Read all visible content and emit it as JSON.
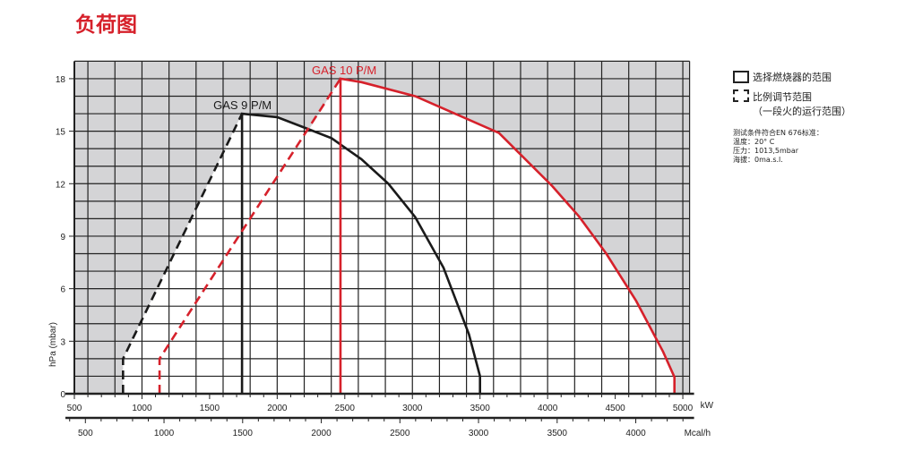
{
  "title": "负荷图",
  "legend": {
    "solid": "选择燃烧器的范围",
    "dashed_1": "比例调节范围",
    "dashed_2": "（一段火的运行范围）",
    "notes": [
      "测试条件符合EN 676标准：",
      "温度：20° C",
      "压力：1013,5mbar",
      "海拔：0ma.s.l."
    ]
  },
  "colors": {
    "red": "#d6212b",
    "black": "#1a1a1a",
    "gray": "#d4d4d6"
  },
  "chart_data": {
    "type": "line",
    "title": "负荷图",
    "xlabel": "kW",
    "x2label": "Mcal/h",
    "ylabel": "hPa (mbar)",
    "xlim": [
      500,
      5050
    ],
    "ylim": [
      0,
      19
    ],
    "xticks": [
      500,
      1000,
      1500,
      2000,
      2500,
      3000,
      3500,
      4000,
      4500,
      5000
    ],
    "x2ticks": [
      500,
      1000,
      1500,
      2000,
      2500,
      3000,
      3500,
      4000
    ],
    "yticks": [
      0,
      3,
      6,
      9,
      12,
      15,
      18
    ],
    "grid": true,
    "series": [
      {
        "name": "GAS 9 P/M",
        "color": "#1a1a1a",
        "dashed": [
          [
            860,
            0
          ],
          [
            860,
            2
          ],
          [
            1740,
            16
          ]
        ],
        "solid": [
          [
            1740,
            0
          ],
          [
            1740,
            16
          ],
          [
            2000,
            15.8
          ],
          [
            2236,
            15.1
          ],
          [
            2402,
            14.6
          ],
          [
            2623,
            13.4
          ],
          [
            2822,
            12.0
          ],
          [
            3020,
            10.1
          ],
          [
            3230,
            7.2
          ],
          [
            3418,
            3.4
          ],
          [
            3500,
            1.0
          ],
          [
            3500,
            0
          ]
        ]
      },
      {
        "name": "GAS 10 P/M",
        "color": "#d6212b",
        "dashed": [
          [
            1130,
            0
          ],
          [
            1130,
            2
          ],
          [
            2468,
            18
          ]
        ],
        "solid": [
          [
            2468,
            0
          ],
          [
            2468,
            18
          ],
          [
            2623,
            17.8
          ],
          [
            3020,
            17.0
          ],
          [
            3640,
            14.9
          ],
          [
            4036,
            11.85
          ],
          [
            4235,
            10.1
          ],
          [
            4434,
            8.0
          ],
          [
            4655,
            5.3
          ],
          [
            4854,
            2.4
          ],
          [
            4938,
            0.95
          ],
          [
            4938,
            0
          ]
        ]
      }
    ]
  }
}
